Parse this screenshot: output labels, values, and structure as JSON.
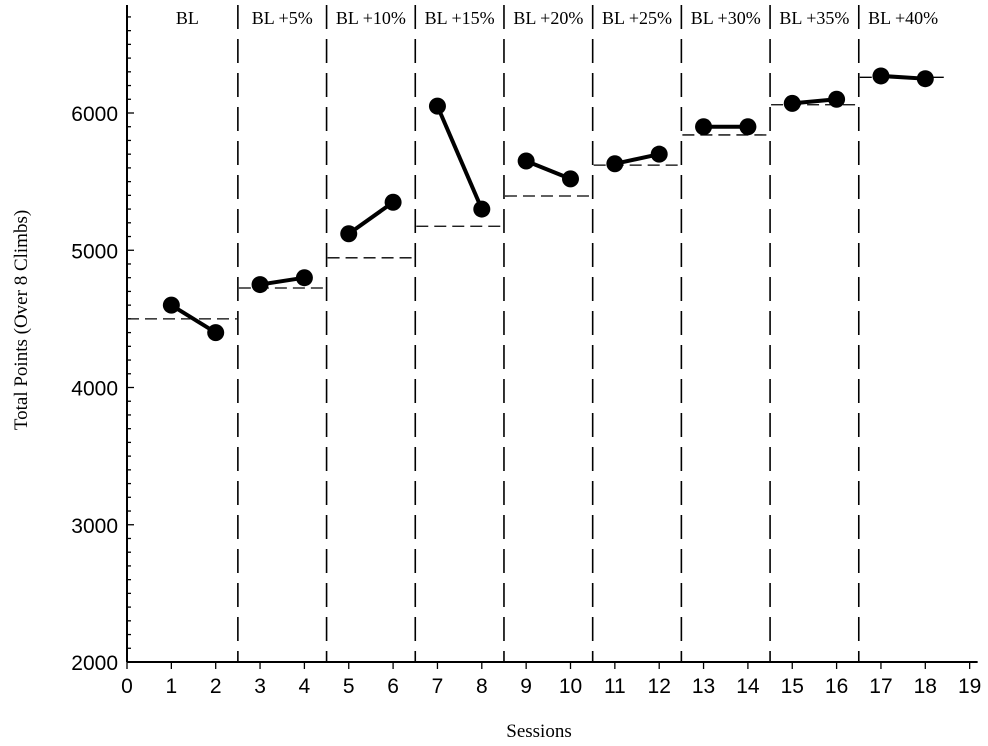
{
  "chart_data": {
    "type": "line",
    "xlabel": "Sessions",
    "ylabel": "Total Points (Over 8 Climbs)",
    "xlim": [
      0,
      19
    ],
    "ylim": [
      2000,
      6800
    ],
    "x_ticks": [
      "0",
      "1",
      "2",
      "3",
      "4",
      "5",
      "6",
      "7",
      "8",
      "9",
      "10",
      "11",
      "12",
      "13",
      "14",
      "15",
      "16",
      "17",
      "18",
      "19"
    ],
    "y_ticks": [
      "2000",
      "3000",
      "4000",
      "5000",
      "6000"
    ],
    "phase_boundaries": [
      2.5,
      4.5,
      6.5,
      8.5,
      10.5,
      12.5,
      14.5,
      16.5
    ],
    "phases": [
      {
        "label": "BL",
        "start": 0,
        "end": 2.5,
        "criterion": 4500,
        "x": [
          1,
          2
        ],
        "y": [
          4600,
          4400
        ]
      },
      {
        "label": "BL +5%",
        "start": 2.5,
        "end": 4.5,
        "criterion": 4725,
        "x": [
          3,
          4
        ],
        "y": [
          4750,
          4800
        ]
      },
      {
        "label": "BL +10%",
        "start": 4.5,
        "end": 6.5,
        "criterion": 4945,
        "x": [
          5,
          6
        ],
        "y": [
          5120,
          5350
        ]
      },
      {
        "label": "BL +15%",
        "start": 6.5,
        "end": 8.5,
        "criterion": 5175,
        "x": [
          7,
          8
        ],
        "y": [
          6050,
          5300
        ]
      },
      {
        "label": "BL +20%",
        "start": 8.5,
        "end": 10.5,
        "criterion": 5395,
        "x": [
          9,
          10
        ],
        "y": [
          5650,
          5520
        ]
      },
      {
        "label": "BL +25%",
        "start": 10.5,
        "end": 12.5,
        "criterion": 5620,
        "x": [
          11,
          12
        ],
        "y": [
          5630,
          5700
        ]
      },
      {
        "label": "BL +30%",
        "start": 12.5,
        "end": 14.5,
        "criterion": 5840,
        "x": [
          13,
          14
        ],
        "y": [
          5900,
          5900
        ]
      },
      {
        "label": "BL +35%",
        "start": 14.5,
        "end": 16.5,
        "criterion": 6060,
        "x": [
          15,
          16
        ],
        "y": [
          6070,
          6100
        ]
      },
      {
        "label": "BL +40%",
        "start": 16.5,
        "end": 18.5,
        "criterion": 6260,
        "x": [
          17,
          18
        ],
        "y": [
          6270,
          6250
        ]
      }
    ],
    "grid": false,
    "legend": "none"
  }
}
